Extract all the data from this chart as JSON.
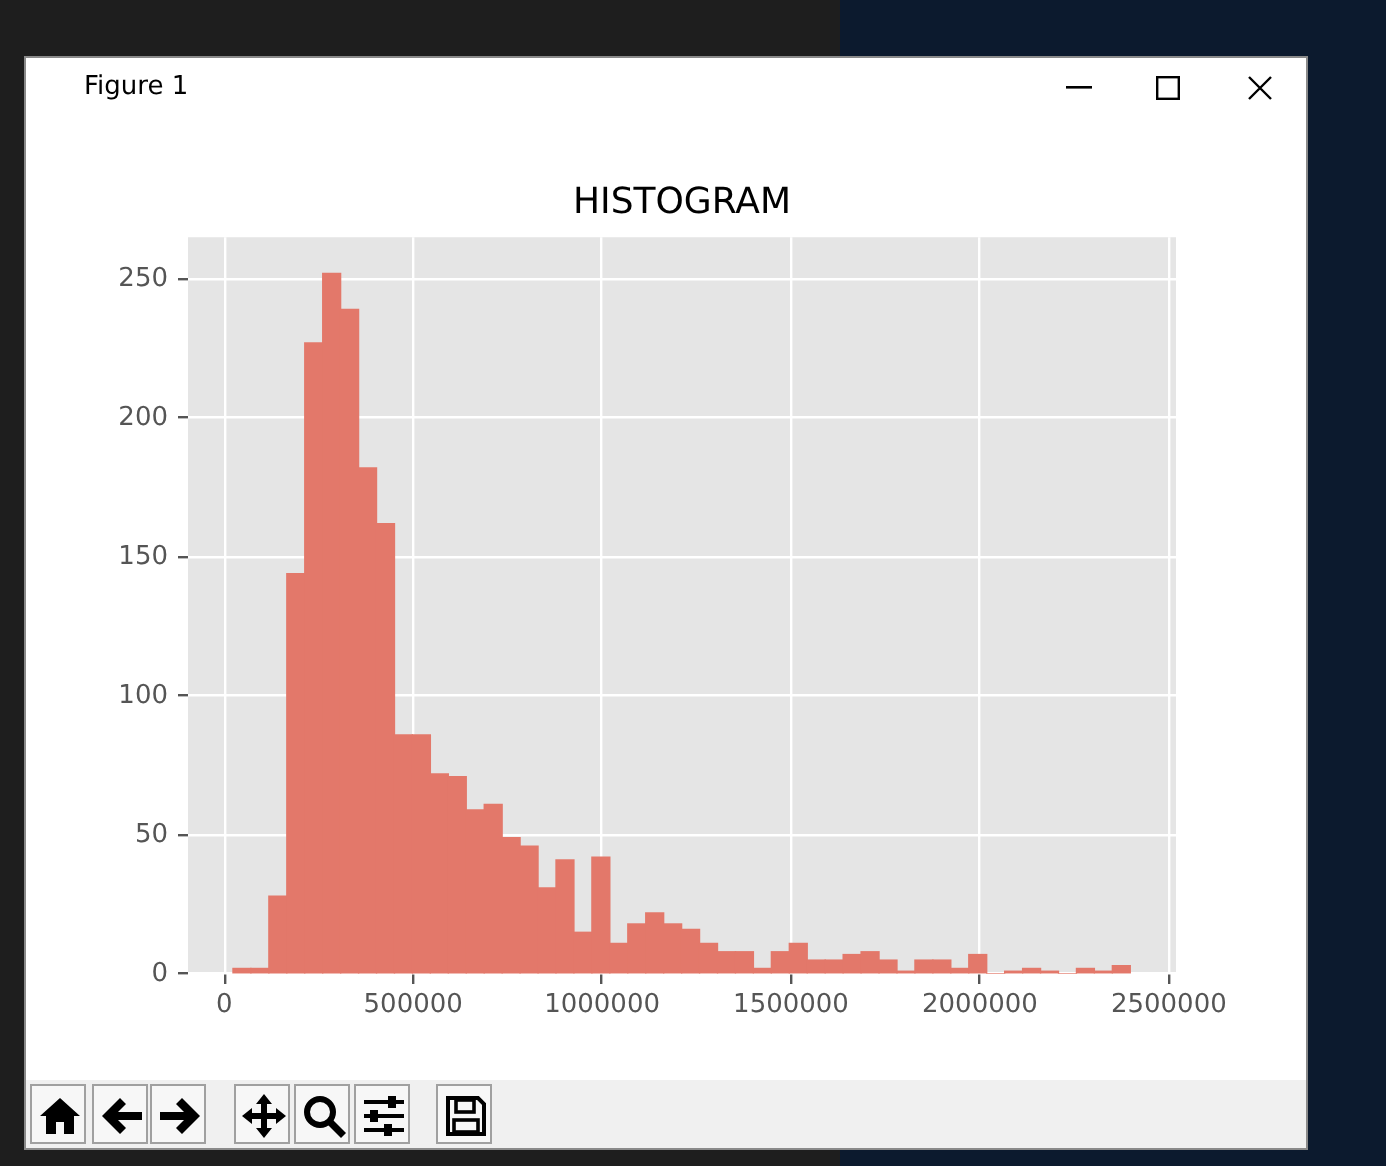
{
  "chart_data": {
    "type": "histogram",
    "title": "HISTOGRAM",
    "annotations": [
      "Figure 1"
    ],
    "bins": [
      23000,
      70500,
      118000,
      165500,
      213000,
      260500,
      308000,
      355500,
      403000,
      450500,
      498000,
      545500,
      593000,
      640500,
      688000,
      735500,
      783000,
      830500,
      878000,
      925500,
      973000,
      1020500,
      1068000,
      1115500,
      1163000,
      1210500,
      1258000,
      1305500,
      1353000,
      1400500,
      1448000,
      1495500,
      1543000,
      1590500,
      1638000,
      1685500,
      1733000,
      1780500,
      1828000,
      1875500,
      1923000,
      1970500,
      2018000,
      2065500,
      2113000,
      2160500,
      2208000,
      2255500,
      2303000,
      2350500,
      2398000
    ],
    "values": [
      2,
      2,
      28,
      144,
      227,
      252,
      239,
      182,
      162,
      86,
      86,
      72,
      71,
      59,
      61,
      49,
      46,
      31,
      41,
      15,
      42,
      11,
      18,
      22,
      18,
      16,
      11,
      8,
      8,
      2,
      8,
      11,
      5,
      5,
      7,
      8,
      5,
      1,
      5,
      5,
      2,
      7,
      0,
      1,
      2,
      1,
      0,
      2,
      1,
      3
    ],
    "color": "#e3786a",
    "xlim": [
      -96000,
      2519000
    ],
    "ylim": [
      0,
      265
    ],
    "xticks": [
      0,
      500000,
      1000000,
      1500000,
      2000000,
      2500000
    ],
    "yticks": [
      0,
      50,
      100,
      150,
      200,
      250
    ],
    "grid": true
  }
}
